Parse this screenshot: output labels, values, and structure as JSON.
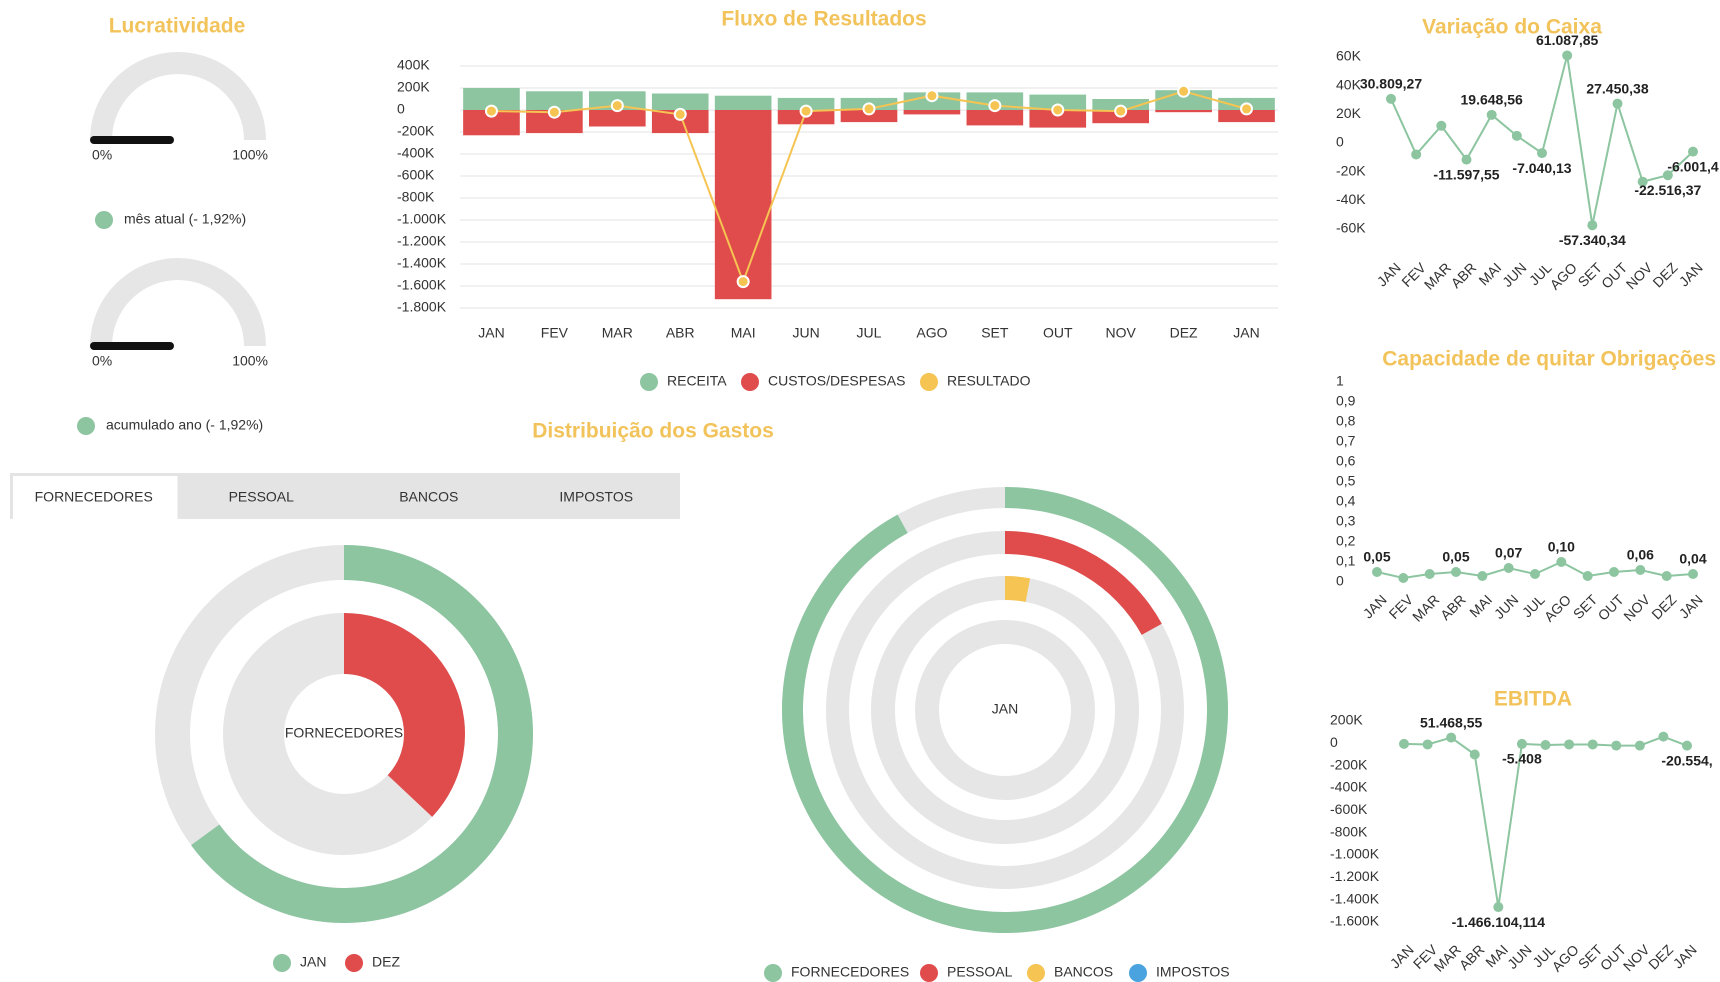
{
  "chart_data": [
    {
      "type": "gauge",
      "title": "Lucratividade",
      "ylim": [
        0,
        100
      ],
      "yticks": [
        {
          "value": 0,
          "label": "0%"
        },
        {
          "value": 100,
          "label": "100%"
        }
      ],
      "color": "#8cc5a0",
      "needle_color": "#111111",
      "gauges": [
        {
          "name": "mês atual (- 1,92%)",
          "value": -1.92
        },
        {
          "name": "acumulado ano (- 1,92%)",
          "value": -1.92
        }
      ]
    },
    {
      "type": "bar-line",
      "title": "Fluxo de Resultados",
      "grid": true,
      "categories": [
        "JAN",
        "FEV",
        "MAR",
        "ABR",
        "MAI",
        "JUN",
        "JUL",
        "AGO",
        "SET",
        "OUT",
        "NOV",
        "DEZ",
        "JAN"
      ],
      "ylim": [
        -1800000,
        400000
      ],
      "yticks": [
        {
          "value": 400000,
          "label": "400K"
        },
        {
          "value": 200000,
          "label": "200K"
        },
        0,
        {
          "value": -200000,
          "label": "-200K"
        },
        {
          "value": -400000,
          "label": "-400K"
        },
        {
          "value": -600000,
          "label": "-600K"
        },
        {
          "value": -800000,
          "label": "-800K"
        },
        {
          "value": -1000000,
          "label": "-1.000K"
        },
        {
          "value": -1200000,
          "label": "-1.200K"
        },
        {
          "value": -1400000,
          "label": "-1.400K"
        },
        {
          "value": -1600000,
          "label": "-1.600K"
        },
        {
          "value": -1800000,
          "label": "-1.800K"
        }
      ],
      "series": [
        {
          "name": "RECEITA",
          "kind": "bar",
          "color": "#8cc5a0",
          "values": [
            200000,
            170000,
            170000,
            150000,
            130000,
            110000,
            110000,
            160000,
            160000,
            140000,
            100000,
            180000,
            110000
          ]
        },
        {
          "name": "CUSTOS/DESPESAS",
          "kind": "bar",
          "color": "#e04b4b",
          "values": [
            -230000,
            -210000,
            -150000,
            -210000,
            -1720000,
            -130000,
            -110000,
            -40000,
            -140000,
            -160000,
            -120000,
            -20000,
            -110000
          ]
        },
        {
          "name": "RESULTADO",
          "kind": "line",
          "color": "#f5c452",
          "values": [
            -10000,
            -20000,
            40000,
            -40000,
            -1560000,
            -10000,
            10000,
            130000,
            40000,
            0,
            -10000,
            170000,
            10000
          ]
        }
      ]
    },
    {
      "type": "line",
      "title": "Variação do Caixa",
      "color": "#8cc5a0",
      "categories": [
        "JAN",
        "FEV",
        "MAR",
        "ABR",
        "MAI",
        "JUN",
        "JUL",
        "AGO",
        "SET",
        "OUT",
        "NOV",
        "DEZ",
        "JAN"
      ],
      "ylim": [
        -60000,
        60000
      ],
      "yticks": [
        {
          "value": 60000,
          "label": "60K"
        },
        {
          "value": 40000,
          "label": "40K"
        },
        {
          "value": 20000,
          "label": "20K"
        },
        0,
        {
          "value": -20000,
          "label": "-20K"
        },
        {
          "value": -40000,
          "label": "-40K"
        },
        {
          "value": -60000,
          "label": "-60K"
        }
      ],
      "values": [
        30809.27,
        -8000,
        12000,
        -11597.55,
        19648.56,
        5000,
        -7040.13,
        61087.85,
        -57340.34,
        27450.38,
        -27000,
        -22516.37,
        -6001.4
      ],
      "value_labels": [
        "30.809,27",
        null,
        null,
        "-11.597,55",
        "19.648,56",
        null,
        "-7.040,13",
        "61.087,85",
        "-57.340,34",
        "27.450,38",
        null,
        "-22.516,37",
        "-6.001,4"
      ]
    },
    {
      "type": "line",
      "title": "Capacidade de quitar Obrigações",
      "color": "#8cc5a0",
      "categories": [
        "JAN",
        "FEV",
        "MAR",
        "ABR",
        "MAI",
        "JUN",
        "JUL",
        "AGO",
        "SET",
        "OUT",
        "NOV",
        "DEZ",
        "JAN"
      ],
      "ylim": [
        0,
        1
      ],
      "yticks": [
        1,
        {
          "value": 0.9,
          "label": "0,9"
        },
        {
          "value": 0.8,
          "label": "0,8"
        },
        {
          "value": 0.7,
          "label": "0,7"
        },
        {
          "value": 0.6,
          "label": "0,6"
        },
        {
          "value": 0.5,
          "label": "0,5"
        },
        {
          "value": 0.4,
          "label": "0,4"
        },
        {
          "value": 0.3,
          "label": "0,3"
        },
        {
          "value": 0.2,
          "label": "0,2"
        },
        {
          "value": 0.1,
          "label": "0,1"
        },
        0
      ],
      "values": [
        0.05,
        0.02,
        0.04,
        0.05,
        0.03,
        0.07,
        0.04,
        0.1,
        0.03,
        0.05,
        0.06,
        0.03,
        0.04
      ],
      "value_labels": [
        "0,05",
        null,
        null,
        "0,05",
        null,
        "0,07",
        null,
        "0,10",
        null,
        null,
        "0,06",
        null,
        "0,04"
      ]
    },
    {
      "type": "line",
      "title": "EBITDA",
      "color": "#8cc5a0",
      "categories": [
        "JAN",
        "FEV",
        "MAR",
        "ABR",
        "MAI",
        "JUN",
        "JUL",
        "AGO",
        "SET",
        "OUT",
        "NOV",
        "DEZ",
        "JAN"
      ],
      "ylim": [
        -1600000,
        200000
      ],
      "yticks": [
        {
          "value": 200000,
          "label": "200K"
        },
        0,
        {
          "value": -200000,
          "label": "-200K"
        },
        {
          "value": -400000,
          "label": "-400K"
        },
        {
          "value": -600000,
          "label": "-600K"
        },
        {
          "value": -800000,
          "label": "-800K"
        },
        {
          "value": -1000000,
          "label": "-1.000K"
        },
        {
          "value": -1200000,
          "label": "-1.200K"
        },
        {
          "value": -1400000,
          "label": "-1.400K"
        },
        {
          "value": -1600000,
          "label": "-1.600K"
        }
      ],
      "values": [
        -5000,
        -10000,
        51468.55,
        -100000,
        -1466104.114,
        -5408,
        -15000,
        -10000,
        -10000,
        -20000,
        -20000,
        60000,
        -20554
      ],
      "value_labels": [
        null,
        null,
        "51.468,55",
        null,
        "-1.466.104,114",
        "-5.408",
        null,
        null,
        null,
        null,
        null,
        null,
        "-20.554,"
      ]
    },
    {
      "type": "radial",
      "title": "Distribuição dos Gastos",
      "tabs": [
        "FORNECEDORES",
        "PESSOAL",
        "BANCOS",
        "IMPOSTOS"
      ],
      "active_tab": 0,
      "center_label": "FORNECEDORES",
      "ylim": [
        0,
        100
      ],
      "series": [
        {
          "name": "JAN",
          "color": "#8cc5a0",
          "value": 65
        },
        {
          "name": "DEZ",
          "color": "#e04b4b",
          "value": 37
        }
      ]
    },
    {
      "type": "radial",
      "center_label": "JAN",
      "ylim": [
        0,
        100
      ],
      "series": [
        {
          "name": "FORNECEDORES",
          "color": "#8cc5a0",
          "value": 92
        },
        {
          "name": "PESSOAL",
          "color": "#e04b4b",
          "value": 17
        },
        {
          "name": "BANCOS",
          "color": "#f5c452",
          "value": 3
        },
        {
          "name": "IMPOSTOS",
          "color": "#4aa3df",
          "value": 0
        }
      ]
    }
  ]
}
